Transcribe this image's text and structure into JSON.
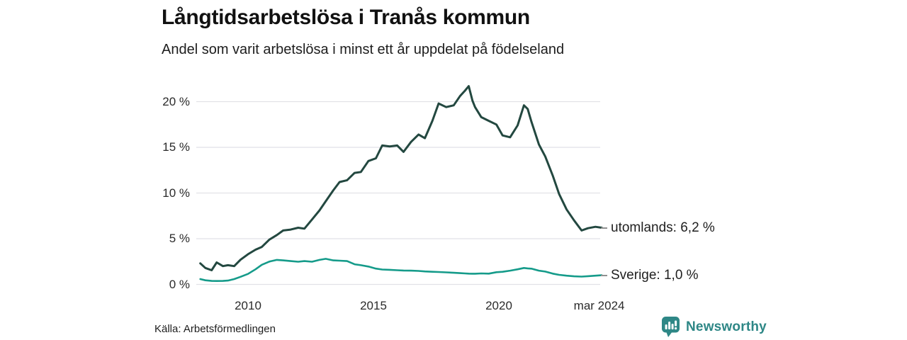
{
  "chart_data": {
    "type": "line",
    "title": "Långtidsarbetslösa i Tranås kommun",
    "subtitle": "Andel som varit arbetslösa i minst ett år uppdelat på födelseland",
    "x_range_note": "monthly series, Jan 2008 - mar 2024, x in decimal years",
    "ylim": [
      0,
      22
    ],
    "grid": true,
    "legend_position": "end-of-line annotations at right",
    "y_ticks": [
      {
        "value": 20,
        "label": "20 %"
      },
      {
        "value": 15,
        "label": "15 %"
      },
      {
        "value": 10,
        "label": "10 %"
      },
      {
        "value": 5,
        "label": "5 %"
      },
      {
        "value": 0,
        "label": "0 %"
      }
    ],
    "x_ticks": [
      {
        "value": 2010,
        "label": "2010"
      },
      {
        "value": 2015,
        "label": "2015"
      },
      {
        "value": 2020,
        "label": "2020"
      },
      {
        "value": 2024,
        "label": "mar 2024"
      }
    ],
    "series": [
      {
        "name": "utomlands",
        "color": "#234840",
        "line_width": 3,
        "end_label": "utomlands: 6,2 %",
        "end_value": 6.2,
        "x": [
          2008.1,
          2008.3,
          2008.55,
          2008.75,
          2009.0,
          2009.2,
          2009.45,
          2009.7,
          2010.0,
          2010.3,
          2010.55,
          2010.85,
          2011.15,
          2011.4,
          2011.7,
          2012.0,
          2012.25,
          2012.55,
          2012.85,
          2013.1,
          2013.4,
          2013.65,
          2013.95,
          2014.25,
          2014.5,
          2014.8,
          2015.1,
          2015.35,
          2015.65,
          2015.95,
          2016.2,
          2016.5,
          2016.8,
          2017.05,
          2017.35,
          2017.6,
          2017.9,
          2018.2,
          2018.45,
          2018.65,
          2018.8,
          2018.95,
          2019.05,
          2019.3,
          2019.6,
          2019.9,
          2020.15,
          2020.45,
          2020.75,
          2021.0,
          2021.15,
          2021.3,
          2021.6,
          2021.85,
          2022.15,
          2022.4,
          2022.7,
          2023.0,
          2023.3,
          2023.55,
          2023.85,
          2024.1
        ],
        "values": [
          2.3,
          1.8,
          1.55,
          2.4,
          2.0,
          2.1,
          2.0,
          2.7,
          3.3,
          3.8,
          4.1,
          4.9,
          5.4,
          5.9,
          6.0,
          6.2,
          6.1,
          7.1,
          8.1,
          9.1,
          10.3,
          11.2,
          11.4,
          12.2,
          12.3,
          13.5,
          13.8,
          15.2,
          15.1,
          15.2,
          14.5,
          15.6,
          16.4,
          16.0,
          17.9,
          19.8,
          19.4,
          19.6,
          20.6,
          21.2,
          21.7,
          20.1,
          19.4,
          18.3,
          17.9,
          17.5,
          16.3,
          16.1,
          17.4,
          19.6,
          19.2,
          17.8,
          15.3,
          14.0,
          11.9,
          9.9,
          8.2,
          7.0,
          5.9,
          6.15,
          6.3,
          6.2
        ]
      },
      {
        "name": "Sverige",
        "color": "#159b8a",
        "line_width": 2.6,
        "end_label": "Sverige: 1,0 %",
        "end_value": 1.0,
        "x": [
          2008.1,
          2008.3,
          2008.55,
          2008.75,
          2009.0,
          2009.2,
          2009.45,
          2009.7,
          2010.0,
          2010.3,
          2010.55,
          2010.85,
          2011.15,
          2011.4,
          2011.7,
          2012.0,
          2012.25,
          2012.55,
          2012.85,
          2013.1,
          2013.4,
          2013.65,
          2013.95,
          2014.25,
          2014.5,
          2014.8,
          2015.1,
          2015.35,
          2015.65,
          2015.95,
          2016.2,
          2016.5,
          2016.8,
          2017.05,
          2017.35,
          2017.6,
          2017.9,
          2018.2,
          2018.45,
          2018.65,
          2018.8,
          2018.95,
          2019.05,
          2019.3,
          2019.6,
          2019.9,
          2020.15,
          2020.45,
          2020.75,
          2021.0,
          2021.15,
          2021.3,
          2021.6,
          2021.85,
          2022.15,
          2022.4,
          2022.7,
          2023.0,
          2023.3,
          2023.55,
          2023.85,
          2024.1
        ],
        "values": [
          0.58,
          0.45,
          0.38,
          0.37,
          0.38,
          0.42,
          0.58,
          0.83,
          1.15,
          1.65,
          2.15,
          2.5,
          2.68,
          2.63,
          2.55,
          2.48,
          2.55,
          2.48,
          2.68,
          2.8,
          2.63,
          2.6,
          2.55,
          2.2,
          2.1,
          1.95,
          1.73,
          1.63,
          1.6,
          1.55,
          1.52,
          1.5,
          1.47,
          1.42,
          1.38,
          1.36,
          1.32,
          1.27,
          1.23,
          1.2,
          1.18,
          1.17,
          1.17,
          1.2,
          1.18,
          1.33,
          1.38,
          1.5,
          1.65,
          1.8,
          1.75,
          1.72,
          1.5,
          1.4,
          1.18,
          1.05,
          0.95,
          0.88,
          0.85,
          0.9,
          0.95,
          1.0
        ]
      }
    ]
  },
  "footer": {
    "source": "Källa: Arbetsförmedlingen",
    "brand": "Newsworthy"
  },
  "colors": {
    "grid": "#e1e1e6",
    "annotation_dash": "#909090",
    "brand_teal": "#2e8786",
    "title_text": "#111111",
    "body_text": "#1d1d1d"
  }
}
